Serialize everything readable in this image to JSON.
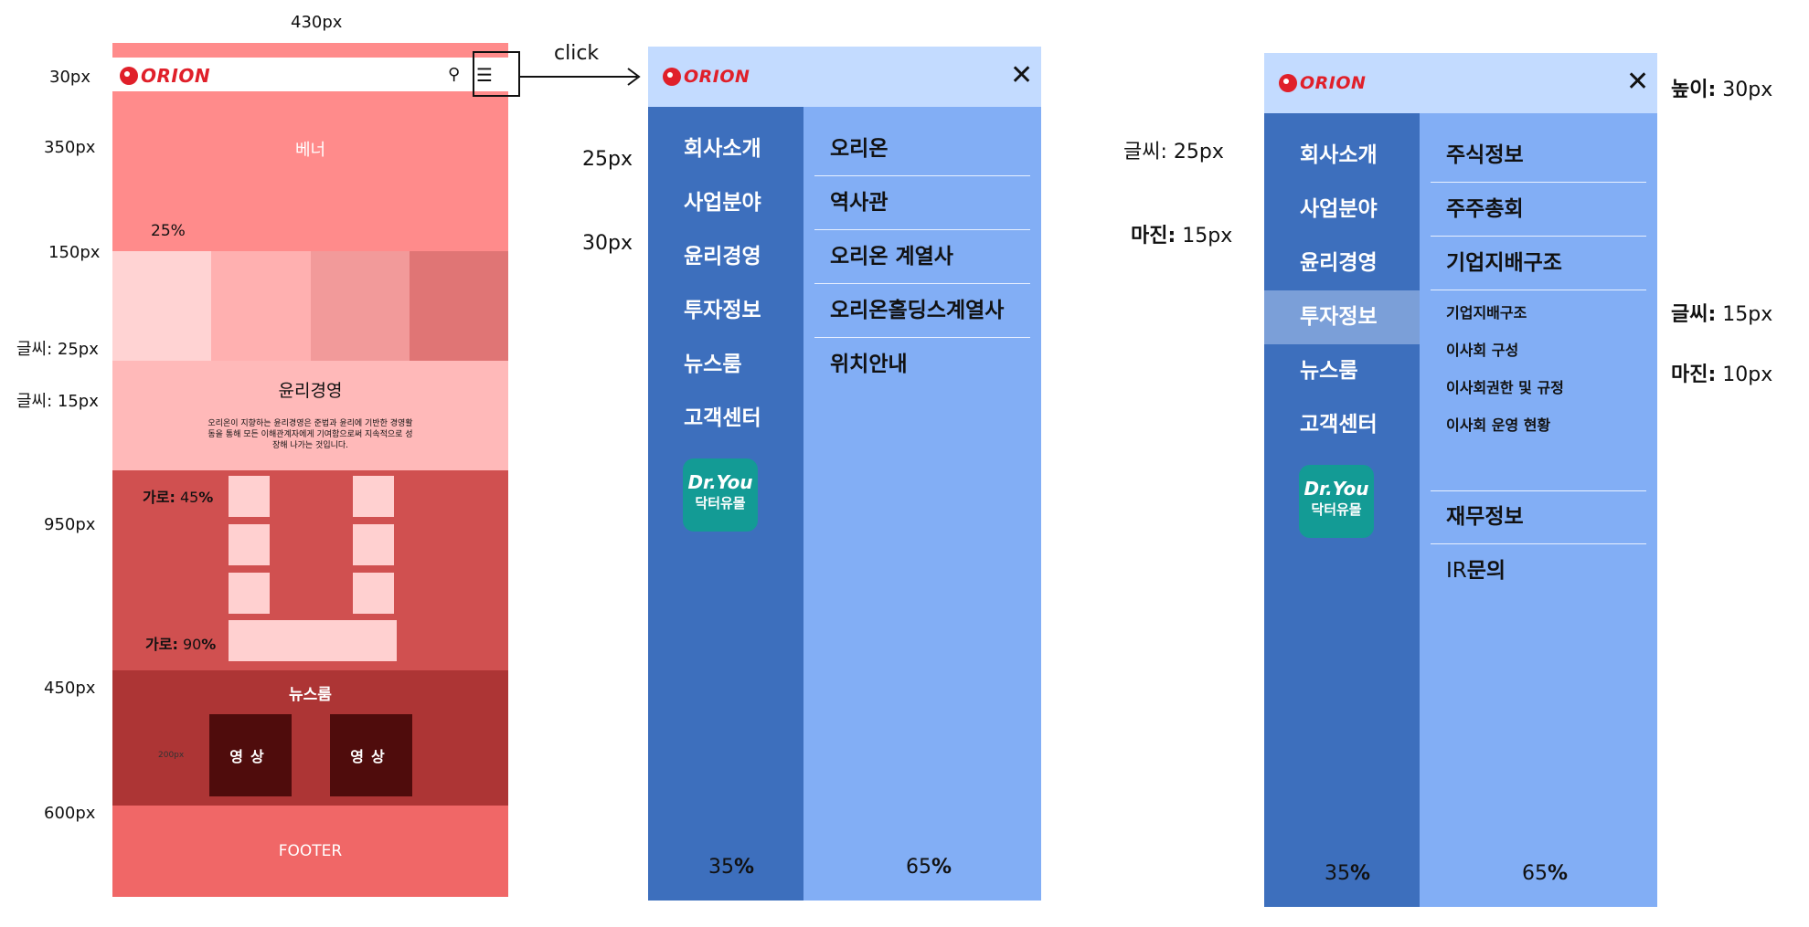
{
  "annotations": {
    "width_label": "430px",
    "heights": [
      "30px",
      "350px",
      "150px",
      "950px",
      "450px",
      "600px"
    ],
    "font_25_label": "글씨: 25px",
    "font_15_label": "글씨: 15px",
    "click_label": "click"
  },
  "mockup": {
    "logo": "ORION",
    "banner_label": "베너",
    "tile_width_pct": "25%",
    "ethics_title": "윤리경영",
    "ethics_desc": "오리온이 지향하는 윤리경영은 준법과 윤리에 기반한 경영활동을 통해 모든 이해관계자에게 기여함으로써 지속적으로 성장해 나가는 것입니다.",
    "row_label_45_prefix": "가로:",
    "row_label_45_num": "45",
    "row_label_90_prefix": "가로:",
    "row_label_90_num": "90",
    "percent_sign": "%",
    "news_title": "뉴스룸",
    "video_label": "영상",
    "video_size_label": "200px",
    "footer_label": "FOOTER",
    "tile_colors": [
      "#ffd3d3",
      "#ffb0b0",
      "#f29a9a",
      "#e07575"
    ]
  },
  "menu1": {
    "logo": "ORION",
    "label_25px": "25px",
    "label_30px": "30px",
    "left_items": [
      "회사소개",
      "사업분야",
      "윤리경영",
      "투자정보",
      "뉴스룸",
      "고객센터"
    ],
    "right_items": [
      "오리온",
      "역사관",
      "오리온 계열사",
      "오리온홀딩스계열사",
      "위치안내"
    ],
    "dr_brand": "Dr.You",
    "dr_brand_ko": "닥터유몰",
    "left_pct_num": "35",
    "right_pct_num": "65"
  },
  "menu2": {
    "logo": "ORION",
    "left_items": [
      "회사소개",
      "사업분야",
      "윤리경영",
      "투자정보",
      "뉴스룸",
      "고객센터"
    ],
    "active_item": "투자정보",
    "right_items_top": [
      "주식정보",
      "주주총회",
      "기업지배구조"
    ],
    "sub_items": [
      "기업지배구조",
      "이사회 구성",
      "이사회권한 및 규정",
      "이사회 운영 현황"
    ],
    "right_items_bottom": [
      "재무정보"
    ],
    "ir_prefix": "IR",
    "ir_suffix": "문의",
    "dr_brand": "Dr.You",
    "dr_brand_ko": "닥터유몰",
    "left_pct_num": "35",
    "right_pct_num": "65",
    "font_25_prefix": "글씨:",
    "font_25_value": "25px",
    "margin_15_prefix": "마진:",
    "margin_15_value": "15px",
    "height_prefix": "높이:",
    "height_value": "30px",
    "font_15_prefix": "글씨:",
    "font_15_value": "15px",
    "margin_10_prefix": "마진:",
    "margin_10_value": "10px"
  },
  "colors": {
    "header_blue": "#c3dbff",
    "left_blue": "#3d6fbd",
    "right_blue": "#82aef5",
    "active_blue": "#7b9fd8"
  }
}
